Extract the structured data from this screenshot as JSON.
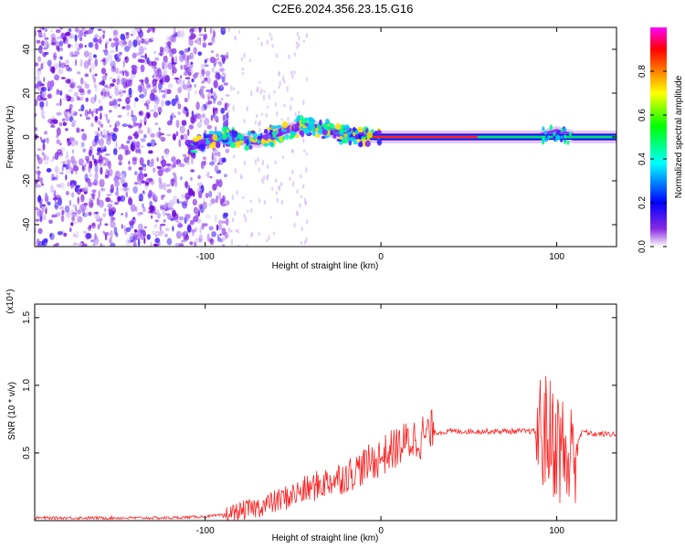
{
  "title": "C2E6.2024.356.23.15.G16",
  "colors": {
    "snr_line": "#ff2020",
    "spectrogram_low": "#8a2be2",
    "spectrogram_high": "#ff0000",
    "axis": "#000000",
    "background": "#ffffff"
  },
  "chart_data": [
    {
      "type": "heatmap",
      "title": "C2E6.2024.356.23.15.G16",
      "xlabel": "Height of straight line (km)",
      "ylabel": "Frequency (Hz)",
      "xlim": [
        -197,
        134
      ],
      "ylim": [
        -50,
        50
      ],
      "xticks": [
        -100,
        0,
        100
      ],
      "yticks": [
        -40,
        -20,
        0,
        20,
        40
      ],
      "grid": false,
      "signal_track": [
        {
          "x": -110,
          "y": -5
        },
        {
          "x": -90,
          "y": 0
        },
        {
          "x": -70,
          "y": -2
        },
        {
          "x": -55,
          "y": 3
        },
        {
          "x": -45,
          "y": 5
        },
        {
          "x": -35,
          "y": 4
        },
        {
          "x": -20,
          "y": 1
        },
        {
          "x": 0,
          "y": 0
        },
        {
          "x": 50,
          "y": 0
        },
        {
          "x": 90,
          "y": 0
        },
        {
          "x": 100,
          "y": 2
        },
        {
          "x": 110,
          "y": 0
        },
        {
          "x": 134,
          "y": 0
        }
      ],
      "colorbar": {
        "label": "Normalized spectral amplitude",
        "range": [
          0.0,
          1.0
        ],
        "ticks": [
          "0.0",
          "0.2",
          "0.4",
          "0.6",
          "0.8"
        ],
        "colors": [
          "#ff00ff",
          "#ff0000",
          "#ffff00",
          "#00ff00",
          "#00ffff",
          "#0000ff",
          "#8a2be2",
          "#ffffff"
        ]
      }
    },
    {
      "type": "line",
      "xlabel": "Height of straight line (km)",
      "ylabel": "SNR (10 * v/v)",
      "yscale_label": "(x10⁴)",
      "xlim": [
        -197,
        134
      ],
      "ylim": [
        0,
        1.6
      ],
      "xticks": [
        -100,
        0,
        100
      ],
      "yticks": [
        0.5,
        1.0,
        1.5
      ],
      "ytick_labels": [
        "0.5",
        "1.0",
        "1.5"
      ],
      "grid": false,
      "x": [
        -197,
        -150,
        -120,
        -100,
        -90,
        -80,
        -70,
        -60,
        -50,
        -40,
        -30,
        -20,
        -10,
        0,
        10,
        20,
        30,
        40,
        50,
        60,
        70,
        80,
        90,
        95,
        100,
        104,
        107,
        110,
        115,
        120,
        134
      ],
      "y": [
        0.02,
        0.02,
        0.02,
        0.03,
        0.04,
        0.07,
        0.1,
        0.14,
        0.19,
        0.24,
        0.29,
        0.33,
        0.4,
        0.47,
        0.55,
        0.61,
        0.65,
        0.66,
        0.66,
        0.66,
        0.66,
        0.66,
        0.66,
        0.64,
        0.58,
        0.5,
        0.4,
        0.55,
        0.66,
        0.64,
        0.64
      ]
    }
  ]
}
